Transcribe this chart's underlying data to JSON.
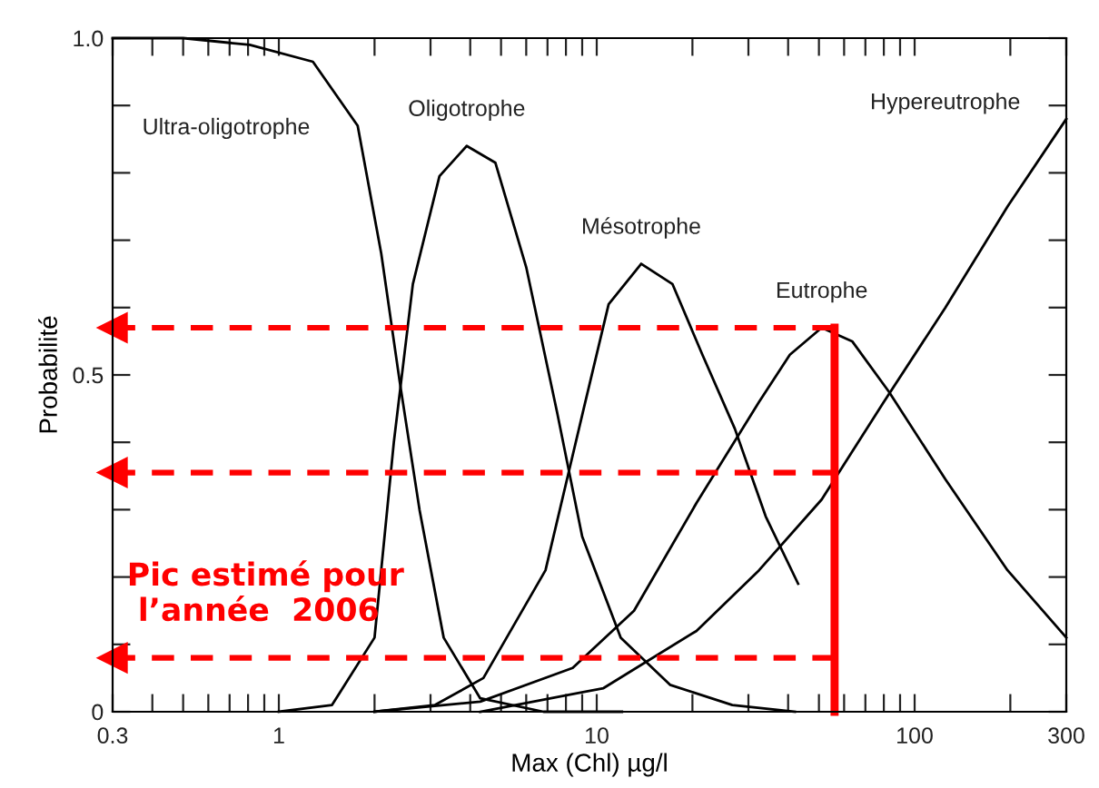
{
  "chart_data": {
    "type": "line",
    "xlabel": "Max (Chl) µg/l",
    "ylabel": "Probabilité",
    "log": "x",
    "grid": false,
    "legend": false,
    "line_style": "solid",
    "marker": "none",
    "xlim": [
      0.3,
      300
    ],
    "ylim": [
      0,
      1
    ],
    "xticks": [
      0.3,
      {
        "value": 0.4,
        "label": null
      },
      {
        "value": 0.5,
        "label": null
      },
      {
        "value": 0.6,
        "label": null
      },
      {
        "value": 0.7,
        "label": null
      },
      {
        "value": 0.8,
        "label": null
      },
      {
        "value": 0.9,
        "label": null
      },
      1,
      {
        "value": 2,
        "label": null
      },
      {
        "value": 3,
        "label": null
      },
      {
        "value": 4,
        "label": null
      },
      {
        "value": 5,
        "label": null
      },
      {
        "value": 6,
        "label": null
      },
      {
        "value": 7,
        "label": null
      },
      {
        "value": 8,
        "label": null
      },
      {
        "value": 9,
        "label": null
      },
      10,
      {
        "value": 20,
        "label": null
      },
      {
        "value": 30,
        "label": null
      },
      {
        "value": 40,
        "label": null
      },
      {
        "value": 50,
        "label": null
      },
      {
        "value": 60,
        "label": null
      },
      {
        "value": 70,
        "label": null
      },
      {
        "value": 80,
        "label": null
      },
      {
        "value": 90,
        "label": null
      },
      100,
      {
        "value": 200,
        "label": null
      },
      300
    ],
    "yticks": [
      0,
      {
        "value": 0.1,
        "label": null
      },
      {
        "value": 0.2,
        "label": null
      },
      {
        "value": 0.3,
        "label": null
      },
      {
        "value": 0.4,
        "label": null
      },
      0.5,
      {
        "value": 0.6,
        "label": null
      },
      {
        "value": 0.7,
        "label": null
      },
      {
        "value": 0.8,
        "label": null
      },
      {
        "value": 0.9,
        "label": null
      },
      {
        "value": 1,
        "label": "1.0"
      }
    ],
    "series": [
      {
        "name": "Ultra-oligotrophe",
        "color": "#000000",
        "x": [
          0.3,
          0.5,
          0.81,
          1.28,
          1.77,
          2.1,
          2.4,
          2.77,
          3.3,
          4.3,
          6.8,
          12
        ],
        "values": [
          1,
          1,
          0.99,
          0.965,
          0.87,
          0.68,
          0.49,
          0.3,
          0.11,
          0.02,
          0,
          0
        ]
      },
      {
        "name": "Oligotrophe",
        "color": "#000000",
        "x": [
          1.0,
          1.47,
          2.0,
          2.3,
          2.64,
          3.2,
          3.9,
          4.8,
          6.0,
          7.5,
          9.0,
          11.9,
          17,
          26.7,
          42
        ],
        "values": [
          0,
          0.01,
          0.11,
          0.4,
          0.635,
          0.795,
          0.84,
          0.815,
          0.66,
          0.445,
          0.26,
          0.11,
          0.04,
          0.01,
          0
        ]
      },
      {
        "name": "Mésotrophe",
        "color": "#000000",
        "x": [
          2.0,
          3.1,
          4.4,
          6.9,
          9.1,
          10.9,
          13.8,
          17.3,
          21.5,
          27.2,
          34,
          43
        ],
        "values": [
          0,
          0.01,
          0.05,
          0.21,
          0.45,
          0.605,
          0.665,
          0.635,
          0.53,
          0.42,
          0.29,
          0.19
        ]
      },
      {
        "name": "Eutrophe",
        "color": "#000000",
        "x": [
          2.0,
          4.3,
          8.4,
          13.1,
          20.6,
          32.4,
          40.5,
          51,
          63.6,
          83,
          125,
          196,
          300
        ],
        "values": [
          0,
          0.015,
          0.065,
          0.15,
          0.31,
          0.46,
          0.53,
          0.57,
          0.55,
          0.475,
          0.345,
          0.21,
          0.11
        ]
      },
      {
        "name": "Hypereutrophe",
        "color": "#000000",
        "x": [
          4.3,
          10.5,
          20.6,
          32.4,
          51,
          80,
          125,
          196,
          300
        ],
        "values": [
          0,
          0.035,
          0.12,
          0.21,
          0.315,
          0.46,
          0.6,
          0.75,
          0.88
        ]
      },
      {
        "color": "#ff0000",
        "line_style": "dashed",
        "marker": "triangle",
        "x": [
          56,
          0.3
        ],
        "values": [
          0.57,
          0.57
        ]
      },
      {
        "color": "#ff0000",
        "line_style": "dashed",
        "marker": "triangle",
        "x": [
          56,
          0.3
        ],
        "values": [
          0.355,
          0.355
        ]
      },
      {
        "color": "#ff0000",
        "line_style": "dashed",
        "marker": "triangle",
        "x": [
          56,
          0.3
        ],
        "values": [
          0.08,
          0.08
        ]
      },
      {
        "color": "#ff0000",
        "line_style": "solid",
        "x": [
          56,
          56
        ],
        "values": [
          0,
          0.57
        ]
      }
    ],
    "annotations": [
      "Pic estimé pour\n l’année  2006"
    ]
  }
}
